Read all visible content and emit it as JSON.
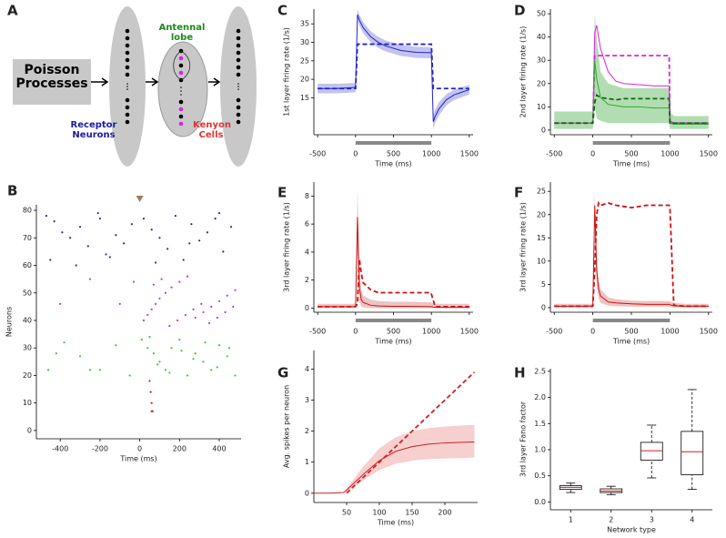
{
  "panel_labels": [
    "A",
    "B",
    "C",
    "D",
    "E",
    "F",
    "G",
    "H"
  ],
  "diagram": {
    "source": "Poisson Processes",
    "receptor": "Receptor Neurons",
    "antennal": "Antennal lobe",
    "kenyon": "Kenyon Cells"
  },
  "chart_data": [
    {
      "type": "scatter",
      "xlabel": "Time (ms)",
      "ylabel": "Neurons",
      "xlim": [
        -520,
        510
      ],
      "ylim": [
        -3,
        82
      ],
      "xticks": [
        -400,
        -200,
        0,
        200,
        400
      ],
      "yticks": [
        0,
        10,
        20,
        30,
        40,
        50,
        60,
        70,
        80
      ],
      "marker_x": 0,
      "series": [
        {
          "color": "#2a2aaa",
          "x": [
            -470,
            -430,
            -390,
            -350,
            -300,
            -260,
            -210,
            -170,
            -120,
            -80,
            -40,
            20,
            60,
            100,
            140,
            180,
            220,
            260,
            300,
            340,
            380,
            420,
            460,
            -450,
            -320,
            -150,
            80,
            250,
            400,
            -200
          ],
          "y": [
            78,
            76,
            72,
            70,
            74,
            67,
            79,
            64,
            71,
            68,
            75,
            77,
            73,
            70,
            66,
            78,
            62,
            75,
            69,
            72,
            77,
            65,
            74,
            62,
            60,
            63,
            61,
            68,
            79,
            77
          ]
        },
        {
          "color": "#cc33cc",
          "x": [
            -400,
            -250,
            -100,
            -30,
            20,
            40,
            60,
            80,
            100,
            130,
            160,
            200,
            240,
            280,
            320,
            360,
            400,
            440,
            480,
            70,
            110,
            150,
            190,
            230,
            270,
            310,
            350,
            390,
            430,
            470
          ],
          "y": [
            46,
            55,
            46,
            54,
            40,
            42,
            44,
            46,
            48,
            50,
            52,
            54,
            56,
            41,
            43,
            45,
            47,
            49,
            51,
            53,
            55,
            38,
            40,
            42,
            44,
            46,
            39,
            41,
            43,
            45
          ]
        },
        {
          "color": "#33cc33",
          "x": [
            -460,
            -380,
            -300,
            -200,
            -120,
            -50,
            10,
            40,
            70,
            100,
            130,
            160,
            200,
            240,
            280,
            320,
            360,
            400,
            440,
            480,
            50,
            90,
            150,
            210,
            270,
            330,
            390,
            450,
            -420,
            -250
          ],
          "y": [
            22,
            32,
            27,
            22,
            31,
            20,
            33,
            30,
            28,
            25,
            22,
            30,
            33,
            20,
            28,
            25,
            22,
            31,
            27,
            20,
            34,
            24,
            21,
            29,
            26,
            32,
            23,
            30,
            28,
            22
          ]
        },
        {
          "color": "#cc2222",
          "x": [
            50,
            55,
            60,
            60,
            65
          ],
          "y": [
            18,
            14,
            10,
            7,
            7
          ]
        }
      ]
    },
    {
      "type": "line",
      "xlabel": "Time (ms)",
      "ylabel": "1st layer firing rate (1/s)",
      "xlim": [
        -550,
        1550
      ],
      "ylim": [
        5,
        39
      ],
      "xticks": [
        -500,
        0,
        500,
        1000,
        1500
      ],
      "yticks": [
        15,
        20,
        25,
        30,
        35
      ],
      "stimulus": [
        0,
        1000
      ],
      "x": [
        -500,
        -250,
        0,
        25,
        50,
        100,
        200,
        300,
        400,
        600,
        800,
        990,
        1000,
        1025,
        1050,
        1100,
        1200,
        1300,
        1500
      ],
      "bands": [
        {
          "color": "#8888dd",
          "upper": [
            18.8,
            18.8,
            19,
            39,
            37.5,
            35.5,
            33,
            31.5,
            30.5,
            29.3,
            28.8,
            28.7,
            28.5,
            10.5,
            11.8,
            13.8,
            16,
            17.2,
            18.5
          ],
          "lower": [
            16.2,
            16.2,
            16.5,
            36,
            34.5,
            32.5,
            30,
            28.5,
            27.5,
            26.3,
            25.8,
            25.7,
            25.5,
            6.5,
            8.2,
            10.2,
            13,
            14.4,
            15.9
          ]
        }
      ],
      "series": [
        {
          "color": "#2222cc",
          "dashed": false,
          "values": [
            17.5,
            17.5,
            17.8,
            37.5,
            36,
            34,
            31.5,
            30,
            29,
            27.8,
            27.3,
            27.2,
            27,
            8.5,
            10,
            12,
            14.5,
            15.8,
            17.2
          ]
        },
        {
          "color": "#2222cc",
          "dashed": true,
          "values": [
            17.5,
            17.5,
            17.5,
            29.5,
            29.5,
            29.5,
            29.5,
            29.5,
            29.5,
            29.5,
            29.5,
            29.5,
            29.5,
            17.5,
            17.5,
            17.5,
            17.5,
            17.5,
            17.5
          ]
        }
      ]
    },
    {
      "type": "line",
      "xlabel": "Time (ms)",
      "ylabel": "2nd layer firing rate (1/s)",
      "xlim": [
        -550,
        1550
      ],
      "ylim": [
        -2,
        52
      ],
      "xticks": [
        -500,
        0,
        500,
        1000,
        1500
      ],
      "yticks": [
        0,
        10,
        20,
        30,
        40,
        50
      ],
      "stimulus": [
        0,
        1000
      ],
      "x": [
        -500,
        -250,
        -50,
        0,
        25,
        50,
        100,
        200,
        300,
        400,
        600,
        800,
        990,
        1000,
        1050,
        1100,
        1300,
        1500
      ],
      "bands": [
        {
          "color": "#66bb66",
          "upper": [
            8,
            8,
            8,
            8,
            50,
            40,
            25,
            20,
            19,
            18,
            18,
            18,
            18,
            8,
            6,
            6,
            6,
            6
          ],
          "lower": [
            0.5,
            0.5,
            0.5,
            0.5,
            10,
            5,
            4,
            3,
            3,
            3,
            3,
            3,
            3,
            0.5,
            0.5,
            0.5,
            0.5,
            0.5
          ]
        }
      ],
      "series": [
        {
          "color": "#dd22dd",
          "dashed": false,
          "values": [
            3,
            3,
            3,
            3,
            42,
            45,
            35,
            25,
            21,
            20,
            19.5,
            19,
            19,
            4,
            3,
            3,
            2.5,
            2.5
          ]
        },
        {
          "color": "#dd22dd",
          "dashed": true,
          "values": [
            3,
            3,
            3,
            3,
            32,
            32,
            32,
            32,
            32,
            32,
            32,
            32,
            32,
            3,
            3,
            3,
            3,
            3
          ]
        },
        {
          "color": "#33aa33",
          "dashed": false,
          "values": [
            3,
            3,
            3,
            3,
            30,
            22,
            14,
            11,
            10.5,
            10,
            10,
            9.5,
            9.5,
            3,
            2.5,
            2.5,
            2.5,
            2.5
          ]
        },
        {
          "color": "#116611",
          "dashed": true,
          "values": [
            3,
            3,
            3,
            3,
            12,
            15,
            14,
            13.5,
            13,
            13.5,
            13.5,
            13.5,
            13.5,
            3,
            3,
            3,
            3,
            3
          ]
        }
      ]
    },
    {
      "type": "line",
      "xlabel": "Time (ms)",
      "ylabel": "3rd layer firing rate (1/s)",
      "xlim": [
        -550,
        1550
      ],
      "ylim": [
        -0.3,
        9
      ],
      "xticks": [
        -500,
        0,
        500,
        1000,
        1500
      ],
      "yticks": [
        0,
        2,
        4,
        6,
        8
      ],
      "stimulus": [
        0,
        1000
      ],
      "x": [
        -500,
        -250,
        0,
        25,
        50,
        75,
        100,
        200,
        300,
        500,
        700,
        990,
        1000,
        1050,
        1200,
        1500
      ],
      "bands": [
        {
          "color": "#dd8888",
          "upper": [
            0.3,
            0.3,
            0.3,
            8.5,
            3,
            1.3,
            0.9,
            0.6,
            0.5,
            0.45,
            0.45,
            0.4,
            0.4,
            0.3,
            0.3,
            0.3
          ],
          "lower": [
            0,
            0,
            0,
            4,
            0.5,
            0.1,
            0.05,
            0,
            0,
            0,
            0,
            0,
            0,
            0,
            0,
            0
          ]
        }
      ],
      "series": [
        {
          "color": "#cc1111",
          "dashed": false,
          "values": [
            0.1,
            0.1,
            0.1,
            6.5,
            1.5,
            0.6,
            0.4,
            0.2,
            0.15,
            0.12,
            0.12,
            0.1,
            0.1,
            0.05,
            0.05,
            0.05
          ]
        },
        {
          "color": "#cc1111",
          "dashed": true,
          "values": [
            0.1,
            0.1,
            0.1,
            0.3,
            3.5,
            2.5,
            1.8,
            1.3,
            1.1,
            1.1,
            1.1,
            1.1,
            1.0,
            0.1,
            0.1,
            0.1
          ]
        }
      ]
    },
    {
      "type": "line",
      "xlabel": "Time (ms)",
      "ylabel": "3rd layer firing rate (1/s)",
      "xlim": [
        -550,
        1550
      ],
      "ylim": [
        -1,
        27
      ],
      "xticks": [
        -500,
        0,
        500,
        1000,
        1500
      ],
      "yticks": [
        0,
        5,
        10,
        15,
        20,
        25
      ],
      "stimulus": [
        0,
        1000
      ],
      "x": [
        -500,
        -250,
        0,
        25,
        50,
        75,
        100,
        200,
        300,
        500,
        700,
        990,
        1000,
        1050,
        1200,
        1500
      ],
      "bands": [
        {
          "color": "#dd8888",
          "upper": [
            0.8,
            0.8,
            0.8,
            25,
            11,
            6,
            4,
            2.2,
            1.8,
            1.5,
            1.4,
            1.4,
            1.3,
            1,
            0.8,
            0.8
          ],
          "lower": [
            0,
            0,
            0,
            18,
            5,
            2,
            1,
            0.4,
            0.3,
            0.2,
            0.2,
            0.2,
            0.1,
            0,
            0,
            0
          ]
        }
      ],
      "series": [
        {
          "color": "#cc1111",
          "dashed": false,
          "values": [
            0.3,
            0.3,
            0.3,
            22,
            8,
            4,
            2.5,
            1.2,
            1,
            0.8,
            0.7,
            0.7,
            0.6,
            0.4,
            0.3,
            0.3
          ]
        },
        {
          "color": "#cc1111",
          "dashed": true,
          "values": [
            0.3,
            0.3,
            0.3,
            8,
            20,
            22.5,
            22,
            22.5,
            22,
            21.5,
            22,
            22,
            21.5,
            0.5,
            0.3,
            0.3
          ]
        }
      ]
    },
    {
      "type": "line",
      "xlabel": "Time (ms)",
      "ylabel": "Avg. spikes per neuron",
      "xlim": [
        0,
        250
      ],
      "ylim": [
        -0.3,
        4.6
      ],
      "xticks": [
        50,
        100,
        150,
        200
      ],
      "yticks": [
        0,
        1,
        2,
        3,
        4
      ],
      "x": [
        0,
        25,
        45,
        50,
        75,
        100,
        125,
        150,
        175,
        200,
        225,
        245
      ],
      "bands": [
        {
          "color": "#f0a0a0",
          "upper": [
            0,
            0,
            0.03,
            0.15,
            0.85,
            1.45,
            1.8,
            2.0,
            2.1,
            2.15,
            2.18,
            2.2
          ],
          "lower": [
            0,
            0,
            0.01,
            0.05,
            0.4,
            0.75,
            0.95,
            1.05,
            1.1,
            1.12,
            1.13,
            1.15
          ]
        }
      ],
      "series": [
        {
          "color": "#cc2222",
          "dashed": false,
          "values": [
            0,
            0,
            0.02,
            0.1,
            0.6,
            1.05,
            1.35,
            1.5,
            1.58,
            1.62,
            1.64,
            1.65
          ]
        },
        {
          "color": "#cc2222",
          "dashed": true,
          "values": [
            null,
            null,
            null,
            0,
            0.5,
            1.0,
            1.5,
            2.0,
            2.5,
            3.0,
            3.5,
            3.9
          ]
        }
      ]
    },
    {
      "type": "box",
      "xlabel": "Network type",
      "ylabel": "3rd layer Fano factor",
      "ylim": [
        -0.15,
        2.55
      ],
      "yticks": [
        {
          "value": 0,
          "label": "0.0"
        },
        0.5,
        {
          "value": 1,
          "label": "1.0"
        },
        1.5,
        {
          "value": 2,
          "label": "2.0"
        },
        2.5
      ],
      "categories": [
        "1",
        "2",
        "3",
        "4"
      ],
      "color": "#000000",
      "median_color": "#cc2222",
      "whisker_low": [
        0.18,
        0.14,
        0.46,
        0.24
      ],
      "q1": [
        0.24,
        0.18,
        0.8,
        0.52
      ],
      "median": [
        0.28,
        0.21,
        0.98,
        0.96
      ],
      "q3": [
        0.31,
        0.25,
        1.14,
        1.35
      ],
      "whisker_high": [
        0.36,
        0.3,
        1.47,
        2.15
      ]
    }
  ]
}
